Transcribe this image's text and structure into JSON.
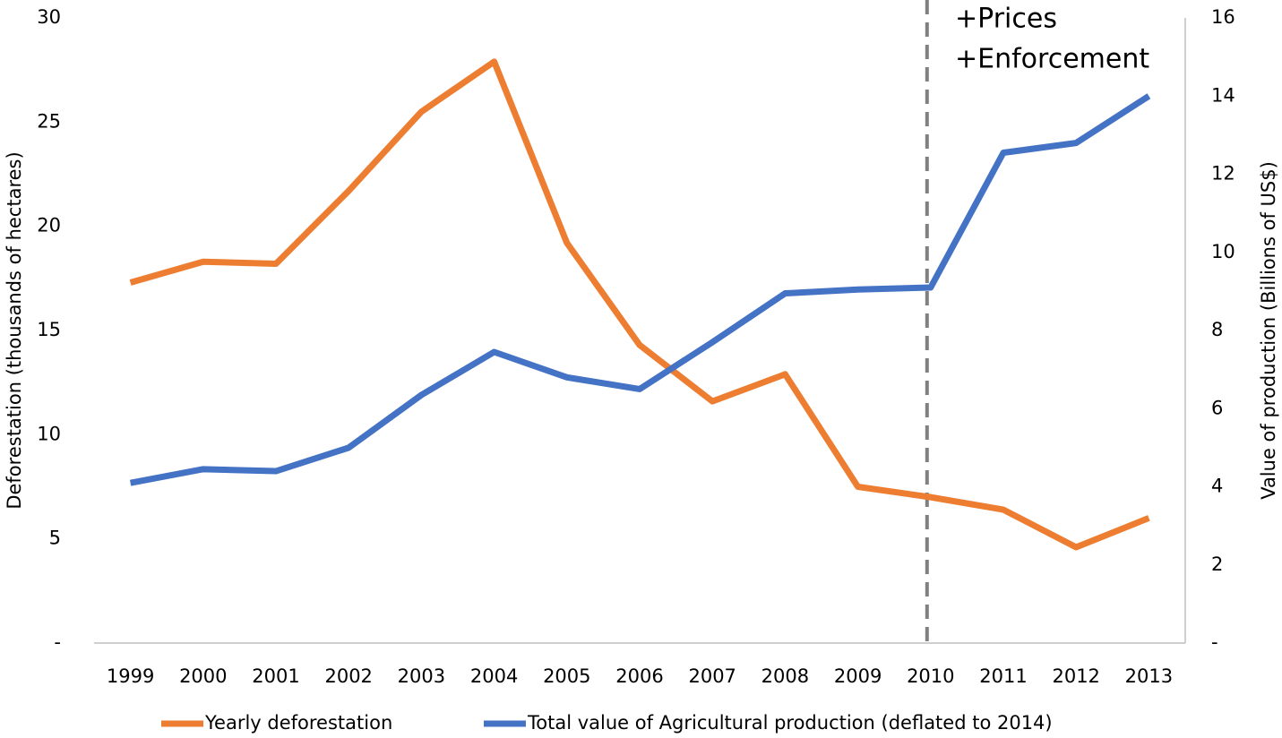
{
  "chart_data": {
    "type": "line",
    "categories": [
      "1999",
      "2000",
      "2001",
      "2002",
      "2003",
      "2004",
      "2005",
      "2006",
      "2007",
      "2008",
      "2009",
      "2010",
      "2011",
      "2012",
      "2013"
    ],
    "series": [
      {
        "name": "Yearly deforestation",
        "color": "#ed7d31",
        "axis": "y",
        "values": [
          17.3,
          18.3,
          18.2,
          21.7,
          25.5,
          27.9,
          19.2,
          14.3,
          11.6,
          12.9,
          7.5,
          7.0,
          6.4,
          4.6,
          6.0
        ]
      },
      {
        "name": "Total value of Agricultural production (deflated to 2014)",
        "color": "#4472c4",
        "axis": "y2",
        "values": [
          4.1,
          4.45,
          4.4,
          5.0,
          6.35,
          7.45,
          6.8,
          6.5,
          7.7,
          8.95,
          9.05,
          9.1,
          12.55,
          12.8,
          14.0
        ]
      }
    ],
    "ylabel": "Deforestation (thousands of  hectares)",
    "y2label": "Value of production (Billions of US$)",
    "ylim": [
      0,
      30
    ],
    "yticks": [
      {
        "value": 0,
        "label": "-"
      },
      5,
      10,
      15,
      20,
      25,
      30
    ],
    "y2lim": [
      0,
      16
    ],
    "y2ticks": [
      {
        "value": 0,
        "label": "-"
      },
      2,
      4,
      6,
      8,
      10,
      12,
      14,
      16
    ],
    "reference_line": {
      "x": "2010",
      "style": "dashed",
      "color": "#808080"
    },
    "annotations": [
      "+Prices",
      "+Enforcement"
    ],
    "legend": "bottom",
    "grid": false
  }
}
